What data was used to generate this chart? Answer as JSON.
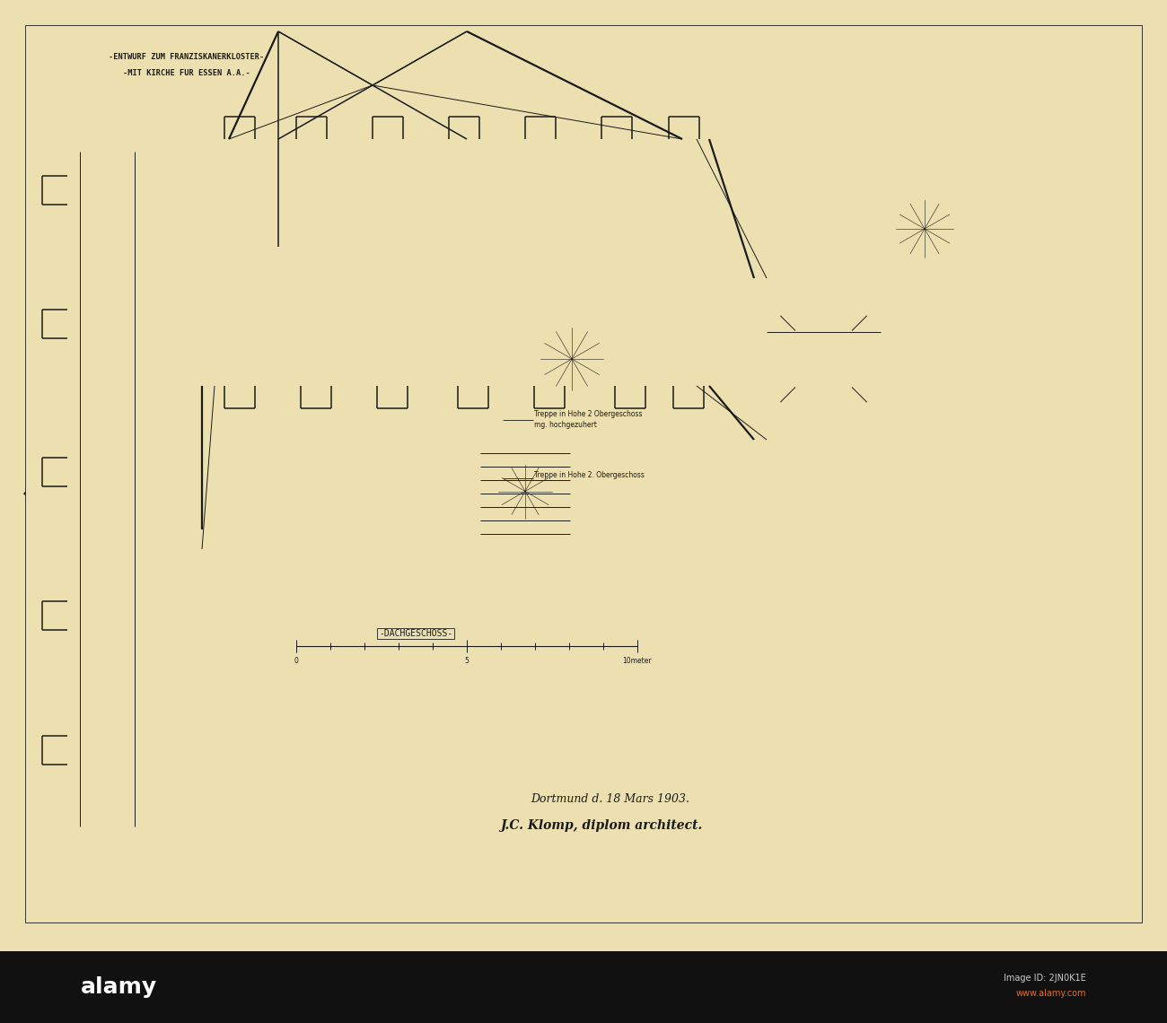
{
  "paper_color": "#ede0b0",
  "line_color": "#1a1a1a",
  "title_line1": "-ENTWURF ZUM FRANZISKANERKLOSTER-",
  "title_line2": "-MIT KIRCHE FUR ESSEN A.A.-",
  "scale_label": "-DACHGESCHOSS-",
  "signature_line1": "Dortmund d. 18 Mars 1903.",
  "signature_line2": "J.C. Klomp, diplom architect.",
  "note1": "Treppe in Hohe 2 Obergeschoss",
  "note1b": "mg. hochgezuhert",
  "note2": "Treppe in Hohe 2. Obergeschoss"
}
